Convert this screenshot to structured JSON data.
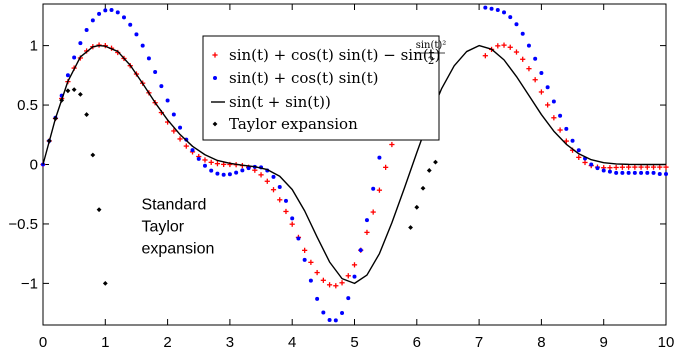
{
  "chart_data": {
    "type": "scatter",
    "title": "",
    "xlabel": "",
    "ylabel": "",
    "xlim": [
      0,
      10
    ],
    "ylim": [
      -1.35,
      1.35
    ],
    "x_ticks": [
      0,
      1,
      2,
      3,
      4,
      5,
      6,
      7,
      8,
      9,
      10
    ],
    "x_tick_labels": [
      "0",
      "1",
      "2",
      "3",
      "4",
      "5",
      "6",
      "7",
      "8",
      "9",
      "10"
    ],
    "y_ticks": [
      -1,
      -0.5,
      0,
      0.5,
      1
    ],
    "y_tick_labels": [
      "−1",
      "−0.5",
      "0",
      "0.5",
      "1"
    ],
    "grid": false,
    "legend_position": "top-center",
    "series": [
      {
        "name": "sin(t) + cos(t) sin(t) − sin(t) sin(t)² / 2",
        "legend_parts": {
          "main": "sin(t) + cos(t) sin(t) − sin(t)",
          "frac_num": "sin(t)²",
          "frac_den": "2"
        },
        "marker": "plus",
        "color": "#ff0000",
        "x": [
          0,
          0.1,
          0.2,
          0.3,
          0.4,
          0.5,
          0.6,
          0.7,
          0.8,
          0.9,
          1.0,
          1.1,
          1.2,
          1.3,
          1.4,
          1.5,
          1.6,
          1.7,
          1.8,
          1.9,
          2.0,
          2.1,
          2.2,
          2.3,
          2.4,
          2.5,
          2.6,
          2.7,
          2.8,
          2.9,
          3.0,
          3.1,
          3.2,
          3.3,
          3.4,
          3.5,
          3.6,
          3.7,
          3.8,
          3.9,
          4.0,
          4.1,
          4.2,
          4.3,
          4.4,
          4.5,
          4.6,
          4.7,
          4.8,
          4.9,
          5.0,
          5.1,
          5.2,
          5.3,
          5.4,
          5.5,
          5.6,
          5.7,
          5.8,
          5.9,
          6.0,
          6.1,
          6.2,
          6.3,
          7.1,
          7.2,
          7.3,
          7.4,
          7.5,
          7.6,
          7.7,
          7.8,
          7.9,
          8.0,
          8.1,
          8.2,
          8.3,
          8.4,
          8.5,
          8.6,
          8.7,
          8.8,
          8.9,
          9.0,
          9.1,
          9.2,
          9.3,
          9.4,
          9.5,
          9.6,
          9.7,
          9.8,
          9.9,
          10.0
        ],
        "y": [
          0,
          0.198,
          0.387,
          0.555,
          0.697,
          0.811,
          0.896,
          0.955,
          0.991,
          1.005,
          1.0,
          0.978,
          0.942,
          0.892,
          0.831,
          0.761,
          0.684,
          0.603,
          0.52,
          0.437,
          0.357,
          0.282,
          0.215,
          0.155,
          0.106,
          0.067,
          0.038,
          0.018,
          0.007,
          0.001,
          0.0,
          -0.002,
          -0.009,
          -0.023,
          -0.048,
          -0.087,
          -0.141,
          -0.212,
          -0.297,
          -0.395,
          -0.502,
          -0.613,
          -0.722,
          -0.823,
          -0.909,
          -0.974,
          -1.012,
          -1.02,
          -0.995,
          -0.936,
          -0.844,
          -0.721,
          -0.571,
          -0.4,
          -0.216,
          -0.024,
          0.168,
          0.353,
          0.524,
          0.675,
          0.801,
          0.898,
          0.965,
          0.999,
          0.915,
          0.968,
          0.998,
          1.004,
          0.986,
          0.946,
          0.885,
          0.806,
          0.713,
          0.61,
          0.501,
          0.393,
          0.29,
          0.197,
          0.12,
          0.06,
          0.017,
          -0.009,
          -0.022,
          -0.027,
          -0.027,
          -0.025,
          -0.023,
          -0.022,
          -0.022,
          -0.022,
          -0.022,
          -0.022,
          -0.022,
          -0.022
        ]
      },
      {
        "name": "sin(t) + cos(t) sin(t)",
        "marker": "dot",
        "color": "#0000ff",
        "x": [
          0,
          0.1,
          0.2,
          0.3,
          0.4,
          0.5,
          0.6,
          0.7,
          0.8,
          0.9,
          1.0,
          1.1,
          1.2,
          1.3,
          1.4,
          1.5,
          1.6,
          1.7,
          1.8,
          1.9,
          2.0,
          2.1,
          2.2,
          2.3,
          2.4,
          2.5,
          2.6,
          2.7,
          2.8,
          2.9,
          3.0,
          3.1,
          3.2,
          3.3,
          3.4,
          3.5,
          3.6,
          3.7,
          3.8,
          3.9,
          4.0,
          4.1,
          4.2,
          4.3,
          4.4,
          4.5,
          4.6,
          4.7,
          4.8,
          4.9,
          5.0,
          5.1,
          5.2,
          5.3,
          5.4,
          5.5,
          5.6,
          5.7,
          5.8,
          5.9,
          6.0,
          6.1,
          6.2,
          6.3,
          7.0,
          7.1,
          7.2,
          7.3,
          7.4,
          7.5,
          7.6,
          7.7,
          7.8,
          7.9,
          8.0,
          8.1,
          8.2,
          8.3,
          8.4,
          8.5,
          8.6,
          8.7,
          8.8,
          8.9,
          9.0,
          9.1,
          9.2,
          9.3,
          9.4,
          9.5,
          9.6,
          9.7,
          9.8,
          9.9,
          10.0
        ],
        "y": [
          0,
          0.199,
          0.393,
          0.579,
          0.751,
          0.9,
          1.021,
          1.131,
          1.212,
          1.267,
          1.296,
          1.3,
          1.28,
          1.238,
          1.175,
          1.095,
          1.0,
          0.893,
          0.778,
          0.659,
          0.538,
          0.421,
          0.31,
          0.209,
          0.121,
          0.047,
          -0.011,
          -0.052,
          -0.077,
          -0.086,
          -0.082,
          -0.068,
          -0.049,
          -0.031,
          -0.02,
          -0.024,
          -0.05,
          -0.104,
          -0.189,
          -0.306,
          -0.453,
          -0.622,
          -0.802,
          -0.977,
          -1.13,
          -1.245,
          -1.308,
          -1.311,
          -1.249,
          -1.124,
          -0.943,
          -0.72,
          -0.468,
          -0.204,
          0.058,
          0.301,
          0.512,
          0.682,
          0.807,
          0.886,
          0.92,
          0.915,
          0.877,
          0.814,
          1.4,
          1.32,
          1.31,
          1.3,
          1.28,
          1.24,
          1.18,
          1.1,
          1.0,
          0.89,
          0.77,
          0.65,
          0.53,
          0.41,
          0.3,
          0.2,
          0.12,
          0.05,
          0.0,
          -0.03,
          -0.05,
          -0.06,
          -0.07,
          -0.07,
          -0.07,
          -0.07,
          -0.07,
          -0.07,
          -0.07,
          -0.08,
          -0.08
        ]
      },
      {
        "name": "sin(t + sin(t))",
        "marker": "line",
        "color": "#000000",
        "x": [
          0,
          0.2,
          0.4,
          0.6,
          0.8,
          0.9,
          1.0,
          1.2,
          1.4,
          1.6,
          1.8,
          2.0,
          2.2,
          2.4,
          2.6,
          2.8,
          3.0,
          3.2,
          3.4,
          3.6,
          3.8,
          4.0,
          4.2,
          4.4,
          4.6,
          4.8,
          5.0,
          5.2,
          5.4,
          5.6,
          5.8,
          6.0,
          6.2,
          6.4,
          6.6,
          6.8,
          7.0,
          7.2,
          7.4,
          7.6,
          7.8,
          8.0,
          8.2,
          8.4,
          8.6,
          8.8,
          9.0,
          9.2,
          9.4,
          9.6,
          9.8,
          10.0
        ],
        "y": [
          0,
          0.387,
          0.7,
          0.905,
          0.99,
          1.0,
          0.995,
          0.951,
          0.835,
          0.681,
          0.52,
          0.375,
          0.252,
          0.153,
          0.082,
          0.034,
          0.01,
          -0.006,
          -0.018,
          -0.043,
          -0.099,
          -0.21,
          -0.39,
          -0.61,
          -0.82,
          -0.96,
          -1.0,
          -0.93,
          -0.75,
          -0.49,
          -0.2,
          0.1,
          0.39,
          0.64,
          0.83,
          0.95,
          1.0,
          0.97,
          0.88,
          0.74,
          0.58,
          0.42,
          0.28,
          0.17,
          0.09,
          0.04,
          0.015,
          0.005,
          0.001,
          0.0,
          0.0,
          0.0
        ]
      },
      {
        "name": "Taylor expansion",
        "marker": "diamond",
        "color": "#000000",
        "x": [
          0.1,
          0.2,
          0.3,
          0.4,
          0.5,
          0.6,
          0.7,
          0.8,
          0.9,
          1.0,
          5.9,
          6.0,
          6.1,
          6.2,
          6.3
        ],
        "y": [
          0.199,
          0.387,
          0.54,
          0.62,
          0.63,
          0.59,
          0.42,
          0.08,
          -0.38,
          -1.0,
          -0.53,
          -0.36,
          -0.2,
          -0.05,
          0.02
        ]
      }
    ],
    "annotations": [
      {
        "lines": [
          "Standard",
          "Taylor",
          "expansion"
        ],
        "x": 1.5,
        "y": -0.38
      }
    ]
  }
}
